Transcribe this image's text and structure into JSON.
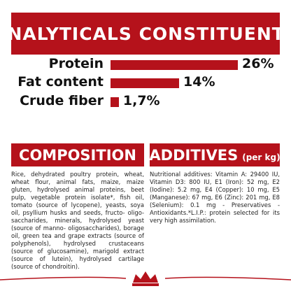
{
  "header": {
    "title": "ANALYTICALS CONSTITUENTS"
  },
  "constituents": [
    {
      "label": "Protein",
      "value": 26,
      "value_label": "26%"
    },
    {
      "label": "Fat content",
      "value": 14,
      "value_label": "14%"
    },
    {
      "label": "Crude fiber",
      "value": 1.7,
      "value_label": "1,7%"
    }
  ],
  "composition": {
    "title": "COMPOSITION",
    "text": "Rice, dehydrated poultry protein, wheat, wheat flour, animal fats, maize, maize gluten, hydrolysed animal proteins, beet pulp, vegetable protein isolate*, fish oil, tomato (source of lycopene), yeasts, soya oil, psyllium husks and seeds, fructo- oligo-saccharides, minerals, hydrolysed yeast (source of manno- oligosaccharides), borage oil, green tea and grape extracts (source of polyphenols), hydrolysed crustaceans (source of glucosamine), marigold extract (source of lutein), hydrolysed cartilage (source of chondroitin)."
  },
  "additives": {
    "title": "ADDITIVES",
    "subtitle": "(per kg)",
    "text": "Nutritional additives: Vitamin A: 29400 IU, Vitamin D3: 800 IU, E1 (Iron): 52 mg, E2 (Iodine): 5.2 mg, E4 (Copper): 10 mg, E5 (Manganese): 67 mg, E6 (Zinc): 201 mg, E8 (Selenium): 0.1 mg - Preservatives - Antioxidants.*L.I.P.: protein selected for its very high assimilation."
  }
}
